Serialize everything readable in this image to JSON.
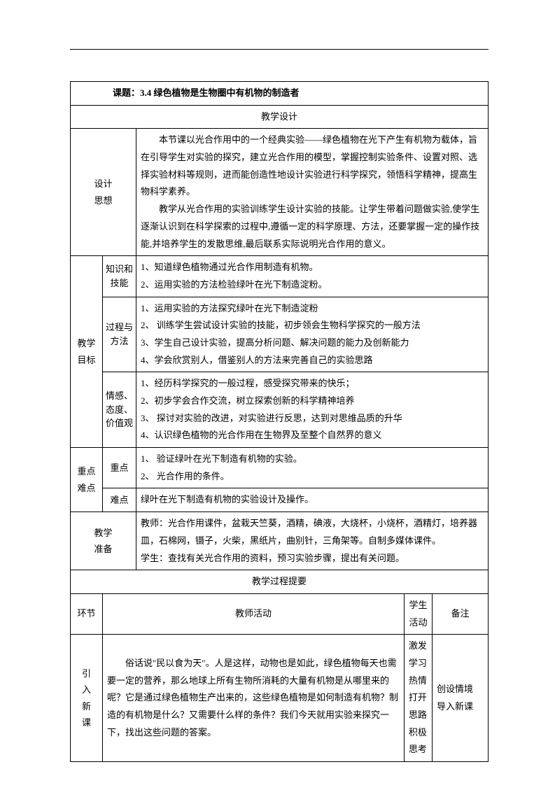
{
  "title_prefix": "课题：",
  "title_main": "3.4 绿色植物是生物圈中有机物的制造者",
  "section_design": "教学设计",
  "label_design_idea": "设计思想",
  "design_idea_p1": "本节课以光合作用中的一个经典实验——绿色植物在光下产生有机物为载体，旨在引导学生对实验的探究，建立光合作用的模型，掌握控制实验条件、设置对照、选择实验材料等规则，进而能创造性地设计实验进行科学探究，领悟科学精神，提高生物科学素养。",
  "design_idea_p2": "教学从光合作用的实验训练学生设计实验的技能。让学生带着问题做实验,使学生逐渐认识到在科学探索的过程中,遵循一定的科学原理、方法，还要掌握一定的操作技能,并培养学生的发散思维,最后联系实际说明光合作用的意义。",
  "label_goals": "教学目标",
  "sub_knowledge": "知识和技能",
  "knowledge_1": "1、知道绿色植物通过光合作用制造有机物。",
  "knowledge_2": "2、运用实验的方法检验绿叶在光下制造淀粉。",
  "sub_process": "过程与方法",
  "process_1": "1、运用实验的方法探究绿叶在光下制造淀粉",
  "process_2": "2、 训练学生尝试设计实验的技能，初步领会生物科学探究的一般方法",
  "process_3": "3、学生自己设计实验，提高分析问题、解决问题的能力及创新能力",
  "process_4": "4、学会欣赏别人，借鉴别人的方法来完善自己的实验思路",
  "sub_emotion": "情感、态度、价值观",
  "emotion_1": "1、经历科学探究的一般过程，感受探究带来的快乐；",
  "emotion_2": "2、初步学会合作交流，树立探索创新的科学精神培养",
  "emotion_3": "3、 探讨对实验的改进，对实验进行反思，达到对思维品质的升华",
  "emotion_4": "4、认识绿色植物的光合作用在生物界及至整个自然界的意义",
  "label_keypoints": "重点难点",
  "sub_key": "重点",
  "key_1": "1、 验证绿叶在光下制造有机物的实验。",
  "key_2": "2、 光合作用的条件。",
  "sub_diff": "难点",
  "diff_1": "绿叶在光下制造有机物的实验设计及操作。",
  "label_prep": "教学准备",
  "prep_1": "教师：光合作用课件，盆栽天竺葵，酒精，碘液，大烧杯，小烧杯，酒精灯，培养器皿，石棉网，镊子，火柴，黑纸片，曲别针，三角架等。自制多媒体课件。",
  "prep_2": "学生：查找有关光合作用的资料，预习实验步骤，提出有关问题。",
  "section_process": "教学过程提要",
  "col_phase": "环节",
  "col_teacher": "教师活动",
  "col_student": "学生活动",
  "col_notes": "备注",
  "phase_intro": "引入新课",
  "teacher_intro": "俗话说\"民以食为天\"。人是这样，动物也是如此，绿色植物每天也需要一定的营养，那么地球上所有生物所消耗的大量有机物是从哪里来的呢？它是通过绿色植物生产出来的，这些绿色植物是如何制造有机物？制造的有机物是什么？又需要什么样的条件？我们今天就用实验来探究一下，找出这些问题的答案。",
  "student_intro_1": "激发学习热情",
  "student_intro_2": "打开思路",
  "student_intro_3": "积极思考",
  "notes_intro_1": "创设情境",
  "notes_intro_2": "导入新课"
}
